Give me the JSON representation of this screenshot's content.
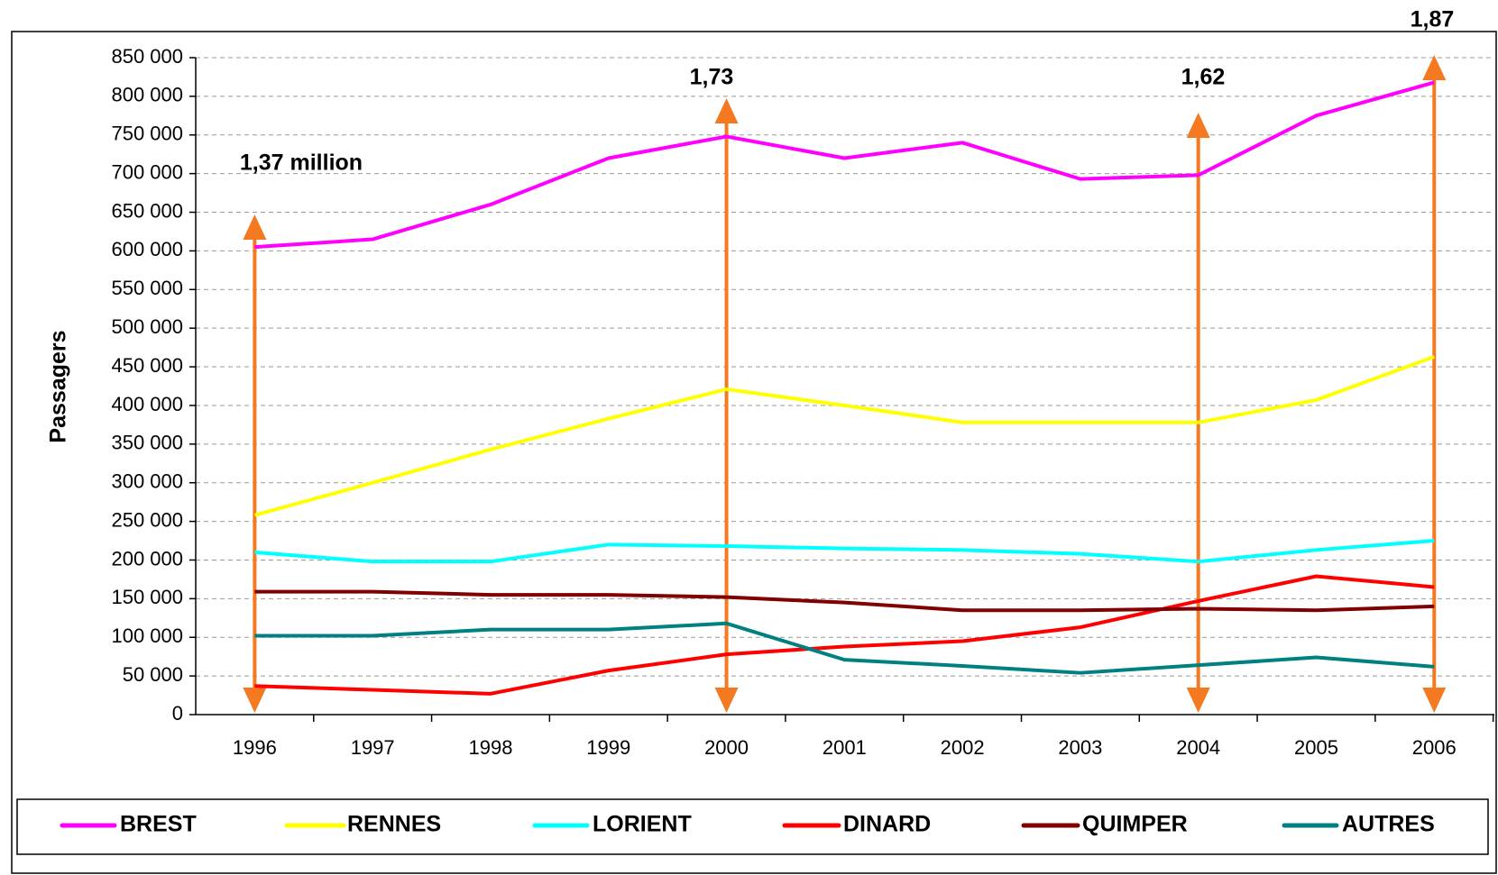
{
  "chart_data": {
    "type": "line",
    "ylabel": "Passagers",
    "categories": [
      "1996",
      "1997",
      "1998",
      "1999",
      "2000",
      "2001",
      "2002",
      "2003",
      "2004",
      "2005",
      "2006"
    ],
    "series": [
      {
        "name": "BREST",
        "color": "#ff00ff",
        "values": [
          605000,
          615000,
          660000,
          720000,
          748000,
          720000,
          740000,
          693000,
          698000,
          775000,
          818000
        ]
      },
      {
        "name": "RENNES",
        "color": "#ffff00",
        "values": [
          258000,
          300000,
          343000,
          383000,
          421000,
          400000,
          378000,
          378000,
          378000,
          407000,
          463000
        ]
      },
      {
        "name": "LORIENT",
        "color": "#00ffff",
        "values": [
          210000,
          198000,
          198000,
          220000,
          218000,
          215000,
          213000,
          208000,
          198000,
          213000,
          225000
        ]
      },
      {
        "name": "DINARD",
        "color": "#ff0000",
        "values": [
          37000,
          32000,
          27000,
          57000,
          78000,
          88000,
          95000,
          113000,
          147000,
          179000,
          165000
        ]
      },
      {
        "name": "QUIMPER",
        "color": "#800000",
        "values": [
          159000,
          159000,
          155000,
          155000,
          152000,
          145000,
          135000,
          135000,
          137000,
          135000,
          140000
        ]
      },
      {
        "name": "AUTRES",
        "color": "#008080",
        "values": [
          102000,
          102000,
          110000,
          110000,
          118000,
          71000,
          63000,
          54000,
          64000,
          74000,
          62000
        ]
      }
    ],
    "annotations": [
      {
        "text": "1,37 million",
        "x": "1996"
      },
      {
        "text": "1,73",
        "x": "2000"
      },
      {
        "text": "1,62",
        "x": "2004"
      },
      {
        "text": "1,87",
        "x": "2006"
      }
    ],
    "annotation_color": "#f47920",
    "ylim": [
      0,
      850000
    ],
    "yticks": [
      0,
      {
        "value": 50000,
        "label": "50 000"
      },
      {
        "value": 100000,
        "label": "100 000"
      },
      {
        "value": 150000,
        "label": "150 000"
      },
      {
        "value": 200000,
        "label": "200 000"
      },
      {
        "value": 250000,
        "label": "250 000"
      },
      {
        "value": 300000,
        "label": "300 000"
      },
      {
        "value": 350000,
        "label": "350 000"
      },
      {
        "value": 400000,
        "label": "400 000"
      },
      {
        "value": 450000,
        "label": "450 000"
      },
      {
        "value": 500000,
        "label": "500 000"
      },
      {
        "value": 550000,
        "label": "550 000"
      },
      {
        "value": 600000,
        "label": "600 000"
      },
      {
        "value": 650000,
        "label": "650 000"
      },
      {
        "value": 700000,
        "label": "700 000"
      },
      {
        "value": 750000,
        "label": "750 000"
      },
      {
        "value": 800000,
        "label": "800 000"
      },
      {
        "value": 850000,
        "label": "850 000"
      }
    ],
    "grid": true,
    "legend": "bottom"
  }
}
